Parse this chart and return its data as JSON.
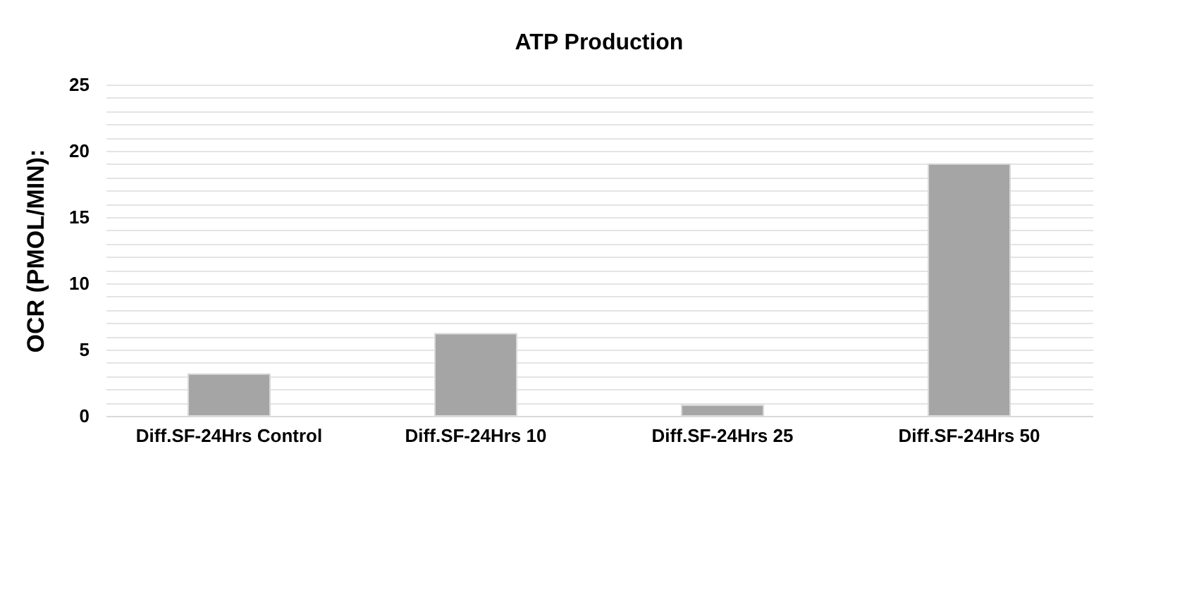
{
  "chart_data": {
    "type": "bar",
    "title": "ATP Production",
    "ylabel": "OCR (PMOL/MIN):",
    "categories": [
      "Diff.SF-24Hrs Control",
      "Diff.SF-24Hrs 10",
      "Diff.SF-24Hrs 25",
      "Diff.SF-24Hrs 50"
    ],
    "values": [
      3.15,
      6.2,
      0.8,
      19.0
    ],
    "color": "#a5a5a5",
    "ylim": [
      0,
      25
    ],
    "yticks": [
      0,
      {
        "value": 1,
        "label": null
      },
      {
        "value": 2,
        "label": null
      },
      {
        "value": 3,
        "label": null
      },
      {
        "value": 4,
        "label": null
      },
      5,
      {
        "value": 6,
        "label": null
      },
      {
        "value": 7,
        "label": null
      },
      {
        "value": 8,
        "label": null
      },
      {
        "value": 9,
        "label": null
      },
      10,
      {
        "value": 11,
        "label": null
      },
      {
        "value": 12,
        "label": null
      },
      {
        "value": 13,
        "label": null
      },
      {
        "value": 14,
        "label": null
      },
      15,
      {
        "value": 16,
        "label": null
      },
      {
        "value": 17,
        "label": null
      },
      {
        "value": 18,
        "label": null
      },
      {
        "value": 19,
        "label": null
      },
      20,
      {
        "value": 21,
        "label": null
      },
      {
        "value": 22,
        "label": null
      },
      {
        "value": 23,
        "label": null
      },
      {
        "value": 24,
        "label": null
      },
      25
    ],
    "grid": true
  }
}
